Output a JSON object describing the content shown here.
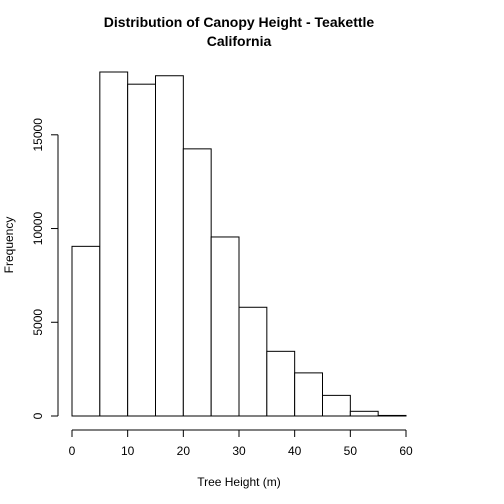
{
  "chart_data": {
    "type": "bar",
    "title_lines": [
      "Distribution of Canopy Height - Teakettle",
      "California"
    ],
    "xlabel": "Tree Height (m)",
    "ylabel": "Frequency",
    "bins": [
      [
        0,
        5
      ],
      [
        5,
        10
      ],
      [
        10,
        15
      ],
      [
        15,
        20
      ],
      [
        20,
        25
      ],
      [
        25,
        30
      ],
      [
        30,
        35
      ],
      [
        35,
        40
      ],
      [
        40,
        45
      ],
      [
        45,
        50
      ],
      [
        50,
        55
      ],
      [
        55,
        60
      ]
    ],
    "values": [
      9050,
      18350,
      17700,
      18150,
      14250,
      9550,
      5800,
      3450,
      2300,
      1100,
      250,
      30
    ],
    "xlim": [
      0,
      60
    ],
    "ylim": [
      0,
      18350
    ],
    "xticks": [
      0,
      10,
      20,
      30,
      40,
      50,
      60
    ],
    "yticks": [
      0,
      5000,
      10000,
      15000
    ],
    "grid": false,
    "colors": {
      "bar_fill": "#ffffff",
      "bar_stroke": "#000000"
    }
  }
}
